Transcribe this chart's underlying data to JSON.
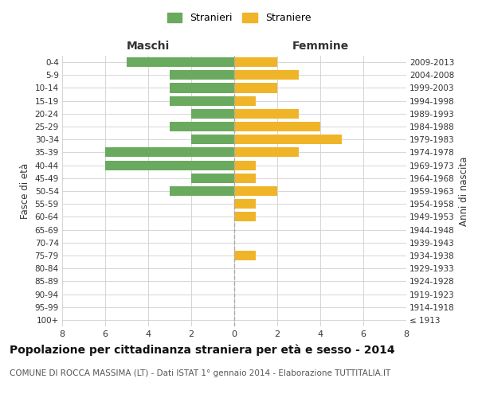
{
  "age_groups": [
    "100+",
    "95-99",
    "90-94",
    "85-89",
    "80-84",
    "75-79",
    "70-74",
    "65-69",
    "60-64",
    "55-59",
    "50-54",
    "45-49",
    "40-44",
    "35-39",
    "30-34",
    "25-29",
    "20-24",
    "15-19",
    "10-14",
    "5-9",
    "0-4"
  ],
  "birth_years": [
    "≤ 1913",
    "1914-1918",
    "1919-1923",
    "1924-1928",
    "1929-1933",
    "1934-1938",
    "1939-1943",
    "1944-1948",
    "1949-1953",
    "1954-1958",
    "1959-1963",
    "1964-1968",
    "1969-1973",
    "1974-1978",
    "1979-1983",
    "1984-1988",
    "1989-1993",
    "1994-1998",
    "1999-2003",
    "2004-2008",
    "2009-2013"
  ],
  "maschi": [
    0,
    0,
    0,
    0,
    0,
    0,
    0,
    0,
    0,
    0,
    3,
    2,
    6,
    6,
    2,
    3,
    2,
    3,
    3,
    3,
    5
  ],
  "femmine": [
    0,
    0,
    0,
    0,
    0,
    1,
    0,
    0,
    1,
    1,
    2,
    1,
    1,
    3,
    5,
    4,
    3,
    1,
    2,
    3,
    2
  ],
  "color_maschi": "#6aaa5e",
  "color_femmine": "#f0b428",
  "title": "Popolazione per cittadinanza straniera per età e sesso - 2014",
  "subtitle": "COMUNE DI ROCCA MASSIMA (LT) - Dati ISTAT 1° gennaio 2014 - Elaborazione TUTTITALIA.IT",
  "ylabel_left": "Fasce di età",
  "ylabel_right": "Anni di nascita",
  "label_maschi": "Maschi",
  "label_femmine": "Femmine",
  "legend_maschi": "Stranieri",
  "legend_femmine": "Straniere",
  "xlim": 8,
  "background_color": "#ffffff",
  "grid_color": "#d0d0d0",
  "dashed_line_color": "#aaaaaa",
  "title_fontsize": 10,
  "subtitle_fontsize": 7.5,
  "bar_height": 0.75
}
